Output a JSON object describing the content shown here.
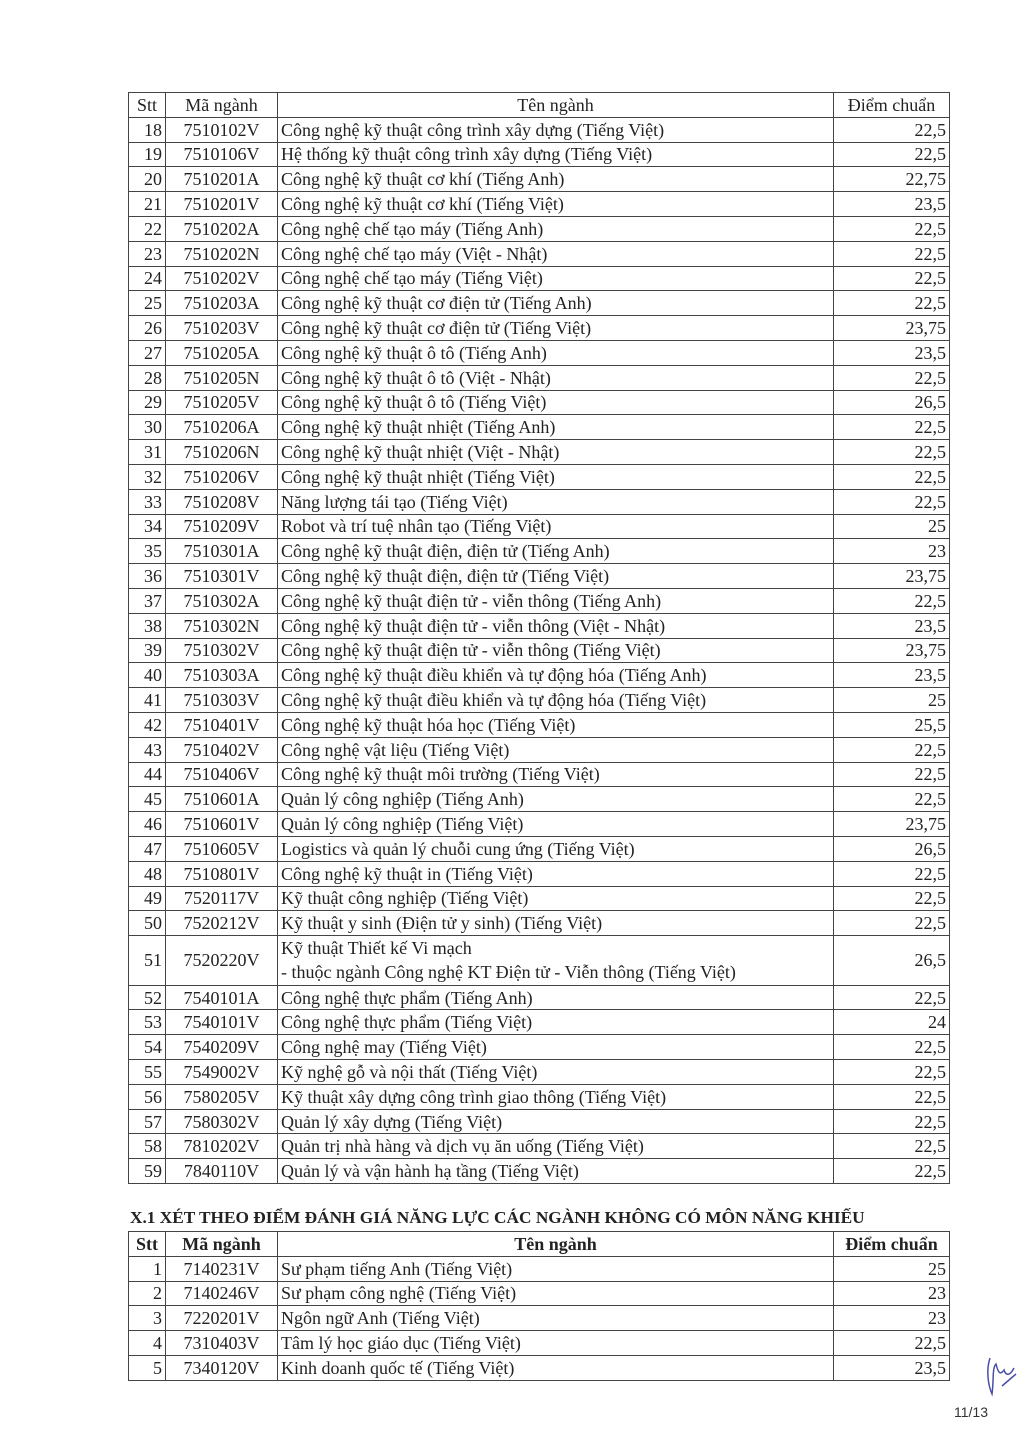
{
  "headers": {
    "stt": "Stt",
    "code": "Mã ngành",
    "name": "Tên ngành",
    "score": "Điểm chuẩn"
  },
  "table1": [
    [
      "18",
      "7510102V",
      "Công nghệ kỹ thuật công trình xây dựng (Tiếng Việt)",
      "22,5"
    ],
    [
      "19",
      "7510106V",
      "Hệ thống kỹ thuật công trình xây dựng (Tiếng Việt)",
      "22,5"
    ],
    [
      "20",
      "7510201A",
      "Công nghệ kỹ thuật cơ khí (Tiếng Anh)",
      "22,75"
    ],
    [
      "21",
      "7510201V",
      "Công nghệ kỹ thuật cơ khí (Tiếng Việt)",
      "23,5"
    ],
    [
      "22",
      "7510202A",
      "Công nghệ chế tạo máy (Tiếng Anh)",
      "22,5"
    ],
    [
      "23",
      "7510202N",
      "Công nghệ chế tạo máy (Việt - Nhật)",
      "22,5"
    ],
    [
      "24",
      "7510202V",
      "Công nghệ chế tạo máy (Tiếng Việt)",
      "22,5"
    ],
    [
      "25",
      "7510203A",
      "Công nghệ kỹ thuật cơ điện tử (Tiếng Anh)",
      "22,5"
    ],
    [
      "26",
      "7510203V",
      "Công nghệ kỹ thuật cơ điện tử (Tiếng Việt)",
      "23,75"
    ],
    [
      "27",
      "7510205A",
      "Công nghệ kỹ thuật ô tô (Tiếng Anh)",
      "23,5"
    ],
    [
      "28",
      "7510205N",
      "Công nghệ kỹ thuật ô tô (Việt - Nhật)",
      "22,5"
    ],
    [
      "29",
      "7510205V",
      "Công nghệ kỹ thuật ô tô (Tiếng Việt)",
      "26,5"
    ],
    [
      "30",
      "7510206A",
      "Công nghệ kỹ thuật nhiệt (Tiếng Anh)",
      "22,5"
    ],
    [
      "31",
      "7510206N",
      "Công nghệ kỹ thuật nhiệt (Việt - Nhật)",
      "22,5"
    ],
    [
      "32",
      "7510206V",
      "Công nghệ kỹ thuật nhiệt (Tiếng Việt)",
      "22,5"
    ],
    [
      "33",
      "7510208V",
      "Năng lượng tái tạo (Tiếng Việt)",
      "22,5"
    ],
    [
      "34",
      "7510209V",
      "Robot và trí tuệ nhân tạo (Tiếng Việt)",
      "25"
    ],
    [
      "35",
      "7510301A",
      "Công nghệ kỹ thuật điện, điện tử (Tiếng Anh)",
      "23"
    ],
    [
      "36",
      "7510301V",
      "Công nghệ kỹ thuật điện, điện tử (Tiếng Việt)",
      "23,75"
    ],
    [
      "37",
      "7510302A",
      "Công nghệ kỹ thuật điện tử - viễn thông (Tiếng Anh)",
      "22,5"
    ],
    [
      "38",
      "7510302N",
      "Công nghệ kỹ thuật điện tử - viễn thông (Việt - Nhật)",
      "23,5"
    ],
    [
      "39",
      "7510302V",
      "Công nghệ kỹ thuật điện tử - viễn thông (Tiếng Việt)",
      "23,75"
    ],
    [
      "40",
      "7510303A",
      "Công nghệ kỹ thuật điều khiển và tự động hóa (Tiếng Anh)",
      "23,5"
    ],
    [
      "41",
      "7510303V",
      "Công nghệ kỹ thuật điều khiển và tự động hóa (Tiếng Việt)",
      "25"
    ],
    [
      "42",
      "7510401V",
      "Công nghệ kỹ thuật hóa học (Tiếng Việt)",
      "25,5"
    ],
    [
      "43",
      "7510402V",
      "Công nghệ vật liệu (Tiếng Việt)",
      "22,5"
    ],
    [
      "44",
      "7510406V",
      "Công nghệ kỹ thuật môi trường (Tiếng Việt)",
      "22,5"
    ],
    [
      "45",
      "7510601A",
      "Quản lý công nghiệp (Tiếng Anh)",
      "22,5"
    ],
    [
      "46",
      "7510601V",
      "Quản lý công nghiệp (Tiếng Việt)",
      "23,75"
    ],
    [
      "47",
      "7510605V",
      "Logistics và quản lý chuỗi cung ứng (Tiếng Việt)",
      "26,5"
    ],
    [
      "48",
      "7510801V",
      "Công nghệ kỹ thuật in (Tiếng Việt)",
      "22,5"
    ],
    [
      "49",
      "7520117V",
      "Kỹ thuật công nghiệp (Tiếng Việt)",
      "22,5"
    ],
    [
      "50",
      "7520212V",
      "Kỹ thuật y sinh (Điện tử y sinh) (Tiếng Việt)",
      "22,5"
    ],
    [
      "51",
      "7520220V",
      "Kỹ thuật Thiết kế Vi mạch\n- thuộc ngành Công nghệ KT Điện tử - Viễn thông (Tiếng Việt)",
      "26,5"
    ],
    [
      "52",
      "7540101A",
      "Công nghệ thực phẩm (Tiếng Anh)",
      "22,5"
    ],
    [
      "53",
      "7540101V",
      "Công nghệ thực phẩm (Tiếng Việt)",
      "24"
    ],
    [
      "54",
      "7540209V",
      "Công nghệ may (Tiếng Việt)",
      "22,5"
    ],
    [
      "55",
      "7549002V",
      "Kỹ nghệ gỗ và nội thất (Tiếng Việt)",
      "22,5"
    ],
    [
      "56",
      "7580205V",
      "Kỹ thuật xây dựng công trình giao thông (Tiếng Việt)",
      "22,5"
    ],
    [
      "57",
      "7580302V",
      "Quản lý xây dựng (Tiếng Việt)",
      "22,5"
    ],
    [
      "58",
      "7810202V",
      "Quản trị nhà hàng và dịch vụ ăn uống (Tiếng Việt)",
      "22,5"
    ],
    [
      "59",
      "7840110V",
      "Quản lý và vận hành hạ tầng (Tiếng Việt)",
      "22,5"
    ]
  ],
  "section_title": "X.1 XÉT THEO ĐIỂM ĐÁNH GIÁ NĂNG LỰC CÁC NGÀNH KHÔNG CÓ MÔN NĂNG KHIẾU",
  "table2": [
    [
      "1",
      "7140231V",
      "Sư phạm tiếng Anh (Tiếng Việt)",
      "25"
    ],
    [
      "2",
      "7140246V",
      "Sư phạm công nghệ (Tiếng Việt)",
      "23"
    ],
    [
      "3",
      "7220201V",
      "Ngôn ngữ Anh (Tiếng Việt)",
      "23"
    ],
    [
      "4",
      "7310403V",
      "Tâm lý học giáo dục (Tiếng Việt)",
      "22,5"
    ],
    [
      "5",
      "7340120V",
      "Kinh doanh quốc tế (Tiếng Việt)",
      "23,5"
    ]
  ],
  "page_number": "11/13"
}
